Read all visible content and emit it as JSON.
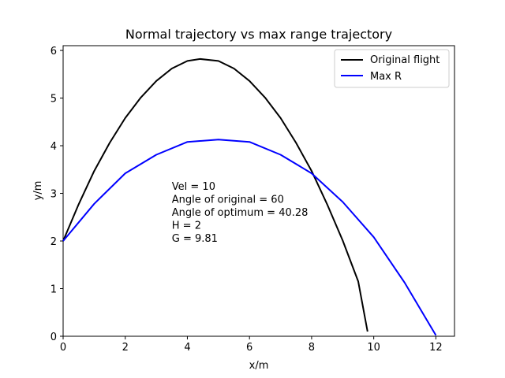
{
  "chart_data": {
    "type": "line",
    "title": "Normal trajectory vs max range trajectory",
    "xlabel": "x/m",
    "ylabel": "y/m",
    "xlim": [
      0,
      12.6
    ],
    "ylim": [
      0,
      6.1
    ],
    "xticks": [
      0,
      2,
      4,
      6,
      8,
      10,
      12
    ],
    "yticks": [
      0,
      1,
      2,
      3,
      4,
      5,
      6
    ],
    "legend": {
      "placement": "top-right"
    },
    "series": [
      {
        "name": "Original flight",
        "color": "#000000",
        "x": [
          0,
          0.5,
          1,
          1.5,
          2,
          2.5,
          3,
          3.5,
          4,
          4.41,
          5,
          5.5,
          6,
          6.5,
          7,
          7.5,
          8,
          8.5,
          9,
          9.5,
          9.8
        ],
        "y": [
          2,
          2.77,
          3.47,
          4.06,
          4.58,
          5.01,
          5.36,
          5.62,
          5.78,
          5.82,
          5.78,
          5.62,
          5.36,
          5.01,
          4.58,
          4.06,
          3.47,
          2.77,
          2.01,
          1.15,
          0.1
        ]
      },
      {
        "name": "Max R",
        "color": "#0000ff",
        "x": [
          0,
          1,
          2,
          3,
          4,
          5,
          6,
          7,
          8,
          9,
          10,
          11,
          12
        ],
        "y": [
          2,
          2.78,
          3.42,
          3.81,
          4.08,
          4.13,
          4.08,
          3.81,
          3.42,
          2.82,
          2.08,
          1.12,
          0.02
        ]
      }
    ],
    "annotation": {
      "x": 3.5,
      "lines": [
        "Vel = 10",
        "Angle of original = 60",
        "Angle of optimum = 40.28",
        "H = 2",
        "G = 9.81"
      ]
    }
  }
}
